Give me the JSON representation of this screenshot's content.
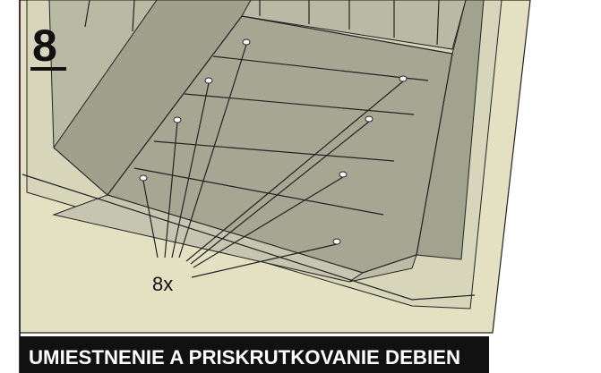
{
  "step": "8",
  "callout": "8x",
  "caption": "UMIESTNENIE A PRISKRUTKOVANIE DEBIEN"
}
